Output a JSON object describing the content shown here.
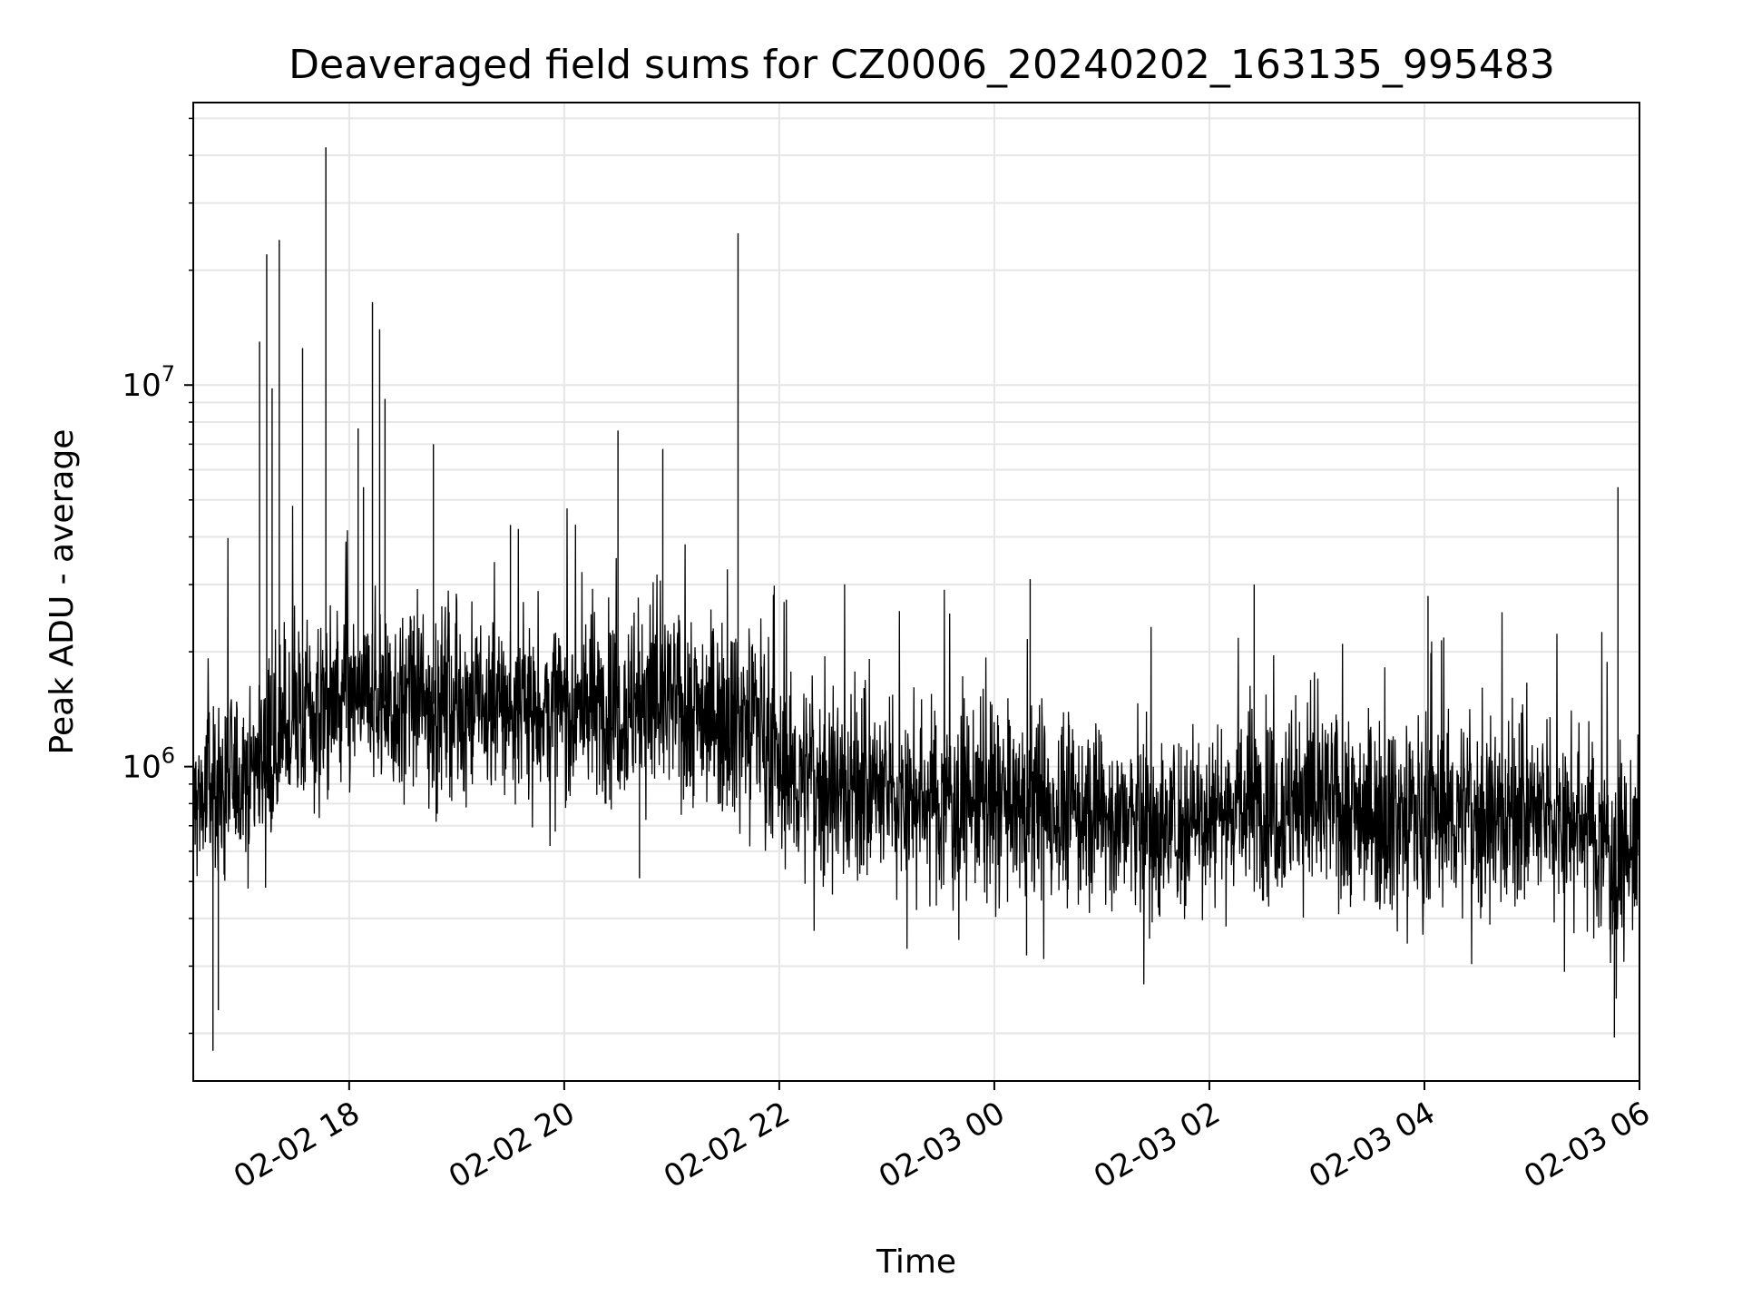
{
  "chart_data": {
    "type": "line",
    "title": "Deaveraged field sums for CZ0006_20240202_163135_995483",
    "xlabel": "Time",
    "ylabel": "Peak ADU - average",
    "yscale": "log",
    "xlim": [
      "2024-02-02 16:33",
      "2024-02-03 06:00"
    ],
    "ylim": [
      150000,
      55000000
    ],
    "grid": true,
    "line_color": "#000000",
    "grid_color": "#e6e6e6",
    "x_ticks": [
      "02-02 18",
      "02-02 20",
      "02-02 22",
      "02-03 00",
      "02-03 02",
      "02-03 04",
      "02-03 06"
    ],
    "y_ticks": [
      {
        "base": "10",
        "exp": "6",
        "value": 1000000
      },
      {
        "base": "10",
        "exp": "7",
        "value": 10000000
      }
    ],
    "series_profile": {
      "x": [
        "2024-02-02 16:33",
        "2024-02-02 17:00",
        "2024-02-02 17:30",
        "2024-02-02 18:00",
        "2024-02-02 19:00",
        "2024-02-02 20:00",
        "2024-02-02 21:00",
        "2024-02-02 21:50",
        "2024-02-02 22:00",
        "2024-02-02 23:00",
        "2024-02-03 00:00",
        "2024-02-03 01:00",
        "2024-02-03 01:30",
        "2024-02-03 02:00",
        "2024-02-03 03:00",
        "2024-02-03 04:00",
        "2024-02-03 05:00",
        "2024-02-03 05:30",
        "2024-02-03 05:50",
        "2024-02-03 06:00"
      ],
      "y": [
        800000,
        950000,
        1300000,
        1500000,
        1450000,
        1400000,
        1450000,
        1350000,
        950000,
        850000,
        800000,
        750000,
        680000,
        780000,
        800000,
        750000,
        750000,
        720000,
        550000,
        650000
      ]
    },
    "spikes": [
      {
        "x": "2024-02-02 17:10",
        "y": 13000000
      },
      {
        "x": "2024-02-02 17:14",
        "y": 22000000
      },
      {
        "x": "2024-02-02 17:17",
        "y": 9800000
      },
      {
        "x": "2024-02-02 17:21",
        "y": 24000000
      },
      {
        "x": "2024-02-02 17:34",
        "y": 12500000
      },
      {
        "x": "2024-02-02 17:47",
        "y": 42000000
      },
      {
        "x": "2024-02-02 18:05",
        "y": 7700000
      },
      {
        "x": "2024-02-02 18:08",
        "y": 5400000
      },
      {
        "x": "2024-02-02 18:13",
        "y": 16500000
      },
      {
        "x": "2024-02-02 18:17",
        "y": 14000000
      },
      {
        "x": "2024-02-02 18:20",
        "y": 9200000
      },
      {
        "x": "2024-02-02 18:47",
        "y": 7000000
      },
      {
        "x": "2024-02-02 19:30",
        "y": 4300000
      },
      {
        "x": "2024-02-02 20:30",
        "y": 7600000
      },
      {
        "x": "2024-02-02 20:55",
        "y": 6800000
      },
      {
        "x": "2024-02-02 21:37",
        "y": 25000000
      },
      {
        "x": "2024-02-03 00:20",
        "y": 3100000
      },
      {
        "x": "2024-02-03 02:25",
        "y": 3000000
      },
      {
        "x": "2024-02-03 04:02",
        "y": 2800000
      },
      {
        "x": "2024-02-03 05:48",
        "y": 5400000
      }
    ],
    "dips": [
      {
        "x": "2024-02-02 16:44",
        "y": 180000
      },
      {
        "x": "2024-02-02 16:47",
        "y": 230000
      },
      {
        "x": "2024-02-02 20:42",
        "y": 510000
      },
      {
        "x": "2024-02-03 00:18",
        "y": 320000
      },
      {
        "x": "2024-02-03 05:46",
        "y": 195000
      }
    ]
  }
}
